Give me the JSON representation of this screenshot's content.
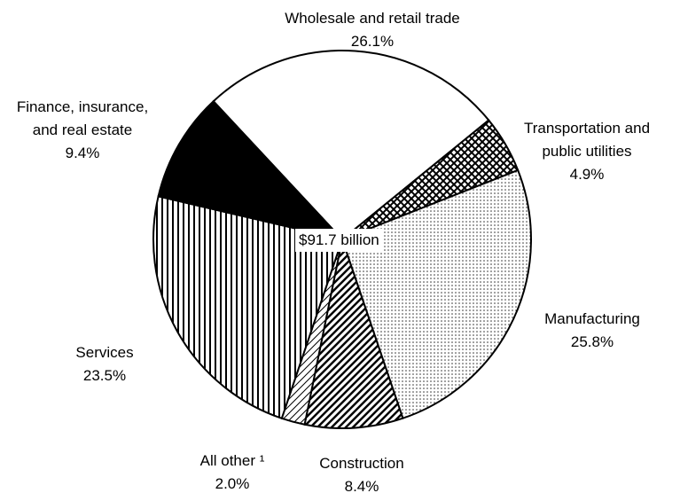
{
  "chart_data": {
    "type": "pie",
    "categories": [
      "Wholesale and retail trade",
      "Transportation and public utilities",
      "Manufacturing",
      "Construction",
      "All other ¹",
      "Services",
      "Finance, insurance, and real estate"
    ],
    "values": [
      26.1,
      4.9,
      25.8,
      8.4,
      2.0,
      23.5,
      9.4
    ],
    "value_labels": [
      "26.1%",
      "4.9%",
      "25.8%",
      "8.4%",
      "2.0%",
      "23.5%",
      "9.4%"
    ],
    "center_label": "$91.7 billion"
  }
}
